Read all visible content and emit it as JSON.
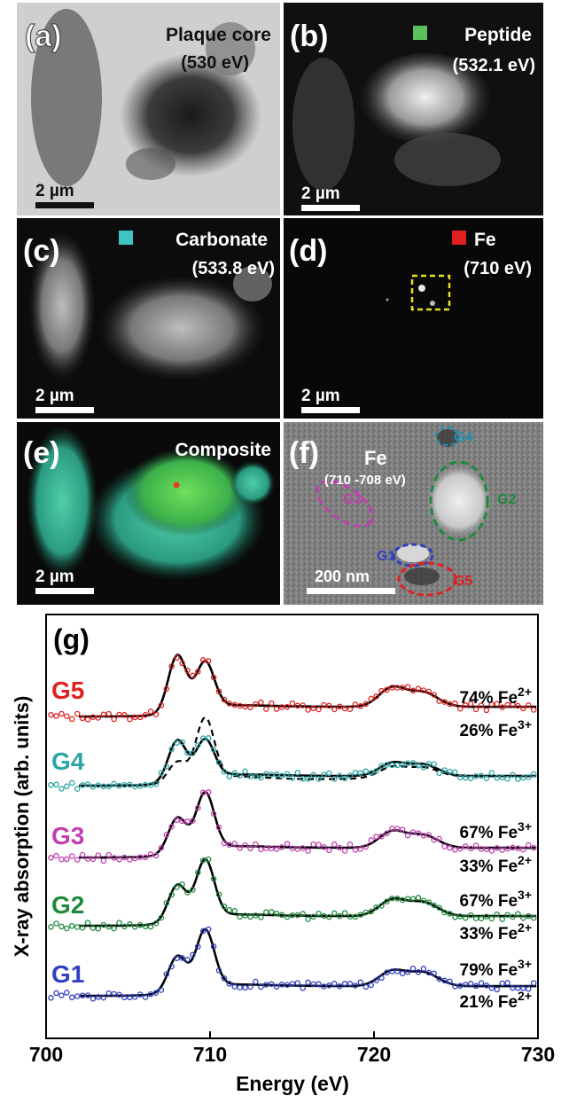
{
  "panels": {
    "a": {
      "letter": "(a)",
      "title": "Plaque core",
      "energy": "(530 eV)",
      "scale": "2 µm"
    },
    "b": {
      "letter": "(b)",
      "title": "Peptide",
      "energy": "(532.1 eV)",
      "scale": "2 µm",
      "swatch": "#5cc15c"
    },
    "c": {
      "letter": "(c)",
      "title": "Carbonate",
      "energy": "(533.8 eV)",
      "scale": "2 µm",
      "swatch": "#3fc4c4"
    },
    "d": {
      "letter": "(d)",
      "title": "Fe",
      "energy": "(710 eV)",
      "scale": "2 µm",
      "swatch": "#e02020"
    },
    "e": {
      "letter": "(e)",
      "title": "Composite",
      "scale": "2 µm"
    },
    "f": {
      "letter": "(f)",
      "title": "Fe",
      "energy": "(710 -708 eV)",
      "scale": "200 nm",
      "regions": [
        {
          "name": "G1",
          "color": "#3040c0"
        },
        {
          "name": "G2",
          "color": "#1e8a3c"
        },
        {
          "name": "G3",
          "color": "#c040b0"
        },
        {
          "name": "G4",
          "color": "#2090b0"
        },
        {
          "name": "G5",
          "color": "#e02020"
        }
      ]
    }
  },
  "chart_data": {
    "type": "line",
    "panel_label": "(g)",
    "xlabel": "Energy (eV)",
    "ylabel": "X-ray absorption (arb. units)",
    "xlim": [
      700,
      730
    ],
    "xticks": [
      700,
      710,
      720,
      730
    ],
    "peak_positions_eV": [
      708.0,
      709.7,
      721.1,
      723.0
    ],
    "series": [
      {
        "name": "G5",
        "color": "#e02020",
        "offset": 4.0,
        "peak_heights": [
          1.0,
          0.8,
          0.33,
          0.25
        ],
        "annotations": [
          "74% Fe2+",
          "26% Fe3+"
        ]
      },
      {
        "name": "G4",
        "color": "#2ba6a6",
        "offset": 3.0,
        "peak_heights": [
          0.72,
          0.65,
          0.22,
          0.2
        ],
        "annotations": []
      },
      {
        "name": "G3",
        "color": "#c040b0",
        "offset": 2.0,
        "peak_heights": [
          0.62,
          0.98,
          0.28,
          0.22
        ],
        "annotations": [
          "67% Fe3+",
          "33% Fe2+"
        ]
      },
      {
        "name": "G2",
        "color": "#1e8a3c",
        "offset": 1.0,
        "peak_heights": [
          0.64,
          1.0,
          0.28,
          0.24
        ],
        "annotations": [
          "67% Fe3+",
          "33% Fe2+"
        ]
      },
      {
        "name": "G1",
        "color": "#3040c0",
        "offset": 0.0,
        "peak_heights": [
          0.62,
          1.0,
          0.26,
          0.24
        ],
        "annotations": [
          "79% Fe3+",
          "21% Fe2+"
        ]
      }
    ]
  }
}
